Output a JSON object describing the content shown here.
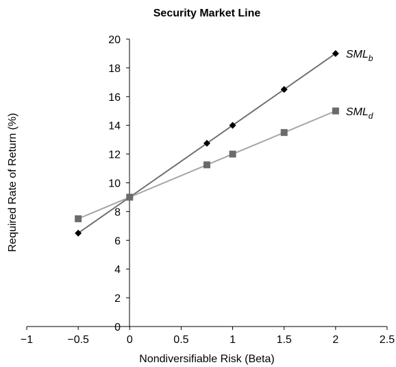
{
  "chart_data": {
    "type": "line",
    "title": "Security Market Line",
    "xlabel": "Nondiversifiable Risk (Beta)",
    "ylabel": "Required Rate of Return (%)",
    "xlim": [
      -1,
      2.5
    ],
    "ylim": [
      0,
      20
    ],
    "xticks": [
      -1,
      -0.5,
      0,
      0.5,
      1,
      1.5,
      2,
      2.5
    ],
    "xtick_labels": [
      "−1",
      "−0.5",
      "0",
      "0.5",
      "1",
      "1.5",
      "2",
      "2.5"
    ],
    "yticks": [
      0,
      2,
      4,
      6,
      8,
      10,
      12,
      14,
      16,
      18,
      20
    ],
    "ytick_labels": [
      "0",
      "2",
      "4",
      "6",
      "8",
      "10",
      "12",
      "14",
      "16",
      "18",
      "20"
    ],
    "grid": false,
    "legend": "inline labels at line ends",
    "series": [
      {
        "name_main": "SML",
        "name_sub": "b",
        "marker": "diamond",
        "line_color": "#707070",
        "marker_color": "#000000",
        "x": [
          -0.5,
          0,
          0.75,
          1,
          1.5,
          2
        ],
        "values": [
          6.5,
          9,
          12.75,
          14,
          16.5,
          19
        ]
      },
      {
        "name_main": "SML",
        "name_sub": "d",
        "marker": "square",
        "line_color": "#a6a6a6",
        "marker_color": "#6b6b6b",
        "x": [
          -0.5,
          0,
          0.75,
          1,
          1.5,
          2
        ],
        "values": [
          7.5,
          9,
          11.25,
          12,
          13.5,
          15
        ]
      }
    ]
  }
}
